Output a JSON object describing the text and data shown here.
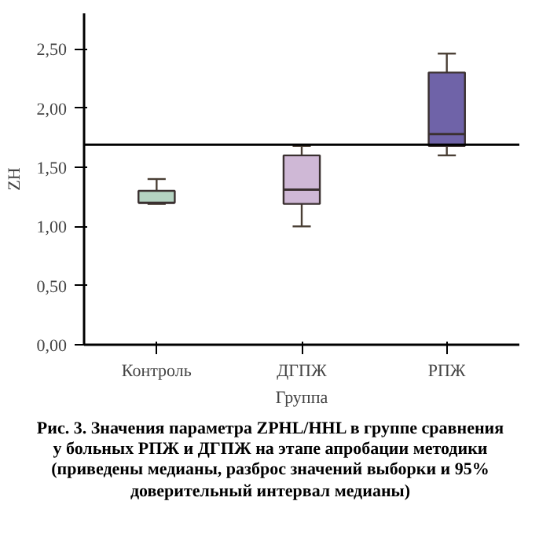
{
  "chart_data": {
    "type": "box",
    "xlabel": "Группа",
    "ylabel": "ZH",
    "categories": [
      "Контроль",
      "ДГПЖ",
      "РПЖ"
    ],
    "boxes": [
      {
        "low": 1.19,
        "q1": 1.2,
        "median": 1.2,
        "q3": 1.3,
        "high": 1.4
      },
      {
        "low": 1.0,
        "q1": 1.19,
        "median": 1.31,
        "q3": 1.6,
        "high": 1.68
      },
      {
        "low": 1.6,
        "q1": 1.68,
        "median": 1.78,
        "q3": 2.3,
        "high": 2.46
      }
    ],
    "colors": [
      "#b5d3c2",
      "#cfb8d6",
      "#6f63a8"
    ],
    "ylim": [
      0,
      2.8
    ],
    "yticks": [
      {
        "value": 0,
        "label": "0,00"
      },
      {
        "value": 0.5,
        "label": "0,50"
      },
      {
        "value": 1,
        "label": "1,00"
      },
      {
        "value": 1.5,
        "label": "1,50"
      },
      {
        "value": 2,
        "label": "2,00"
      },
      {
        "value": 2.5,
        "label": "2,50"
      }
    ],
    "ref_lines": [
      {
        "axis": "y",
        "value": 1.69,
        "color": "#000000"
      }
    ],
    "grid": false,
    "annotations": [
      "Рис. 3. Значения параметра ZPHL/HHL в группе сравнения у больных РПЖ и ДГПЖ на этапе апробации методики (приведены медианы, разброс значений выборки и 95% доверительный интервал медианы)"
    ]
  }
}
